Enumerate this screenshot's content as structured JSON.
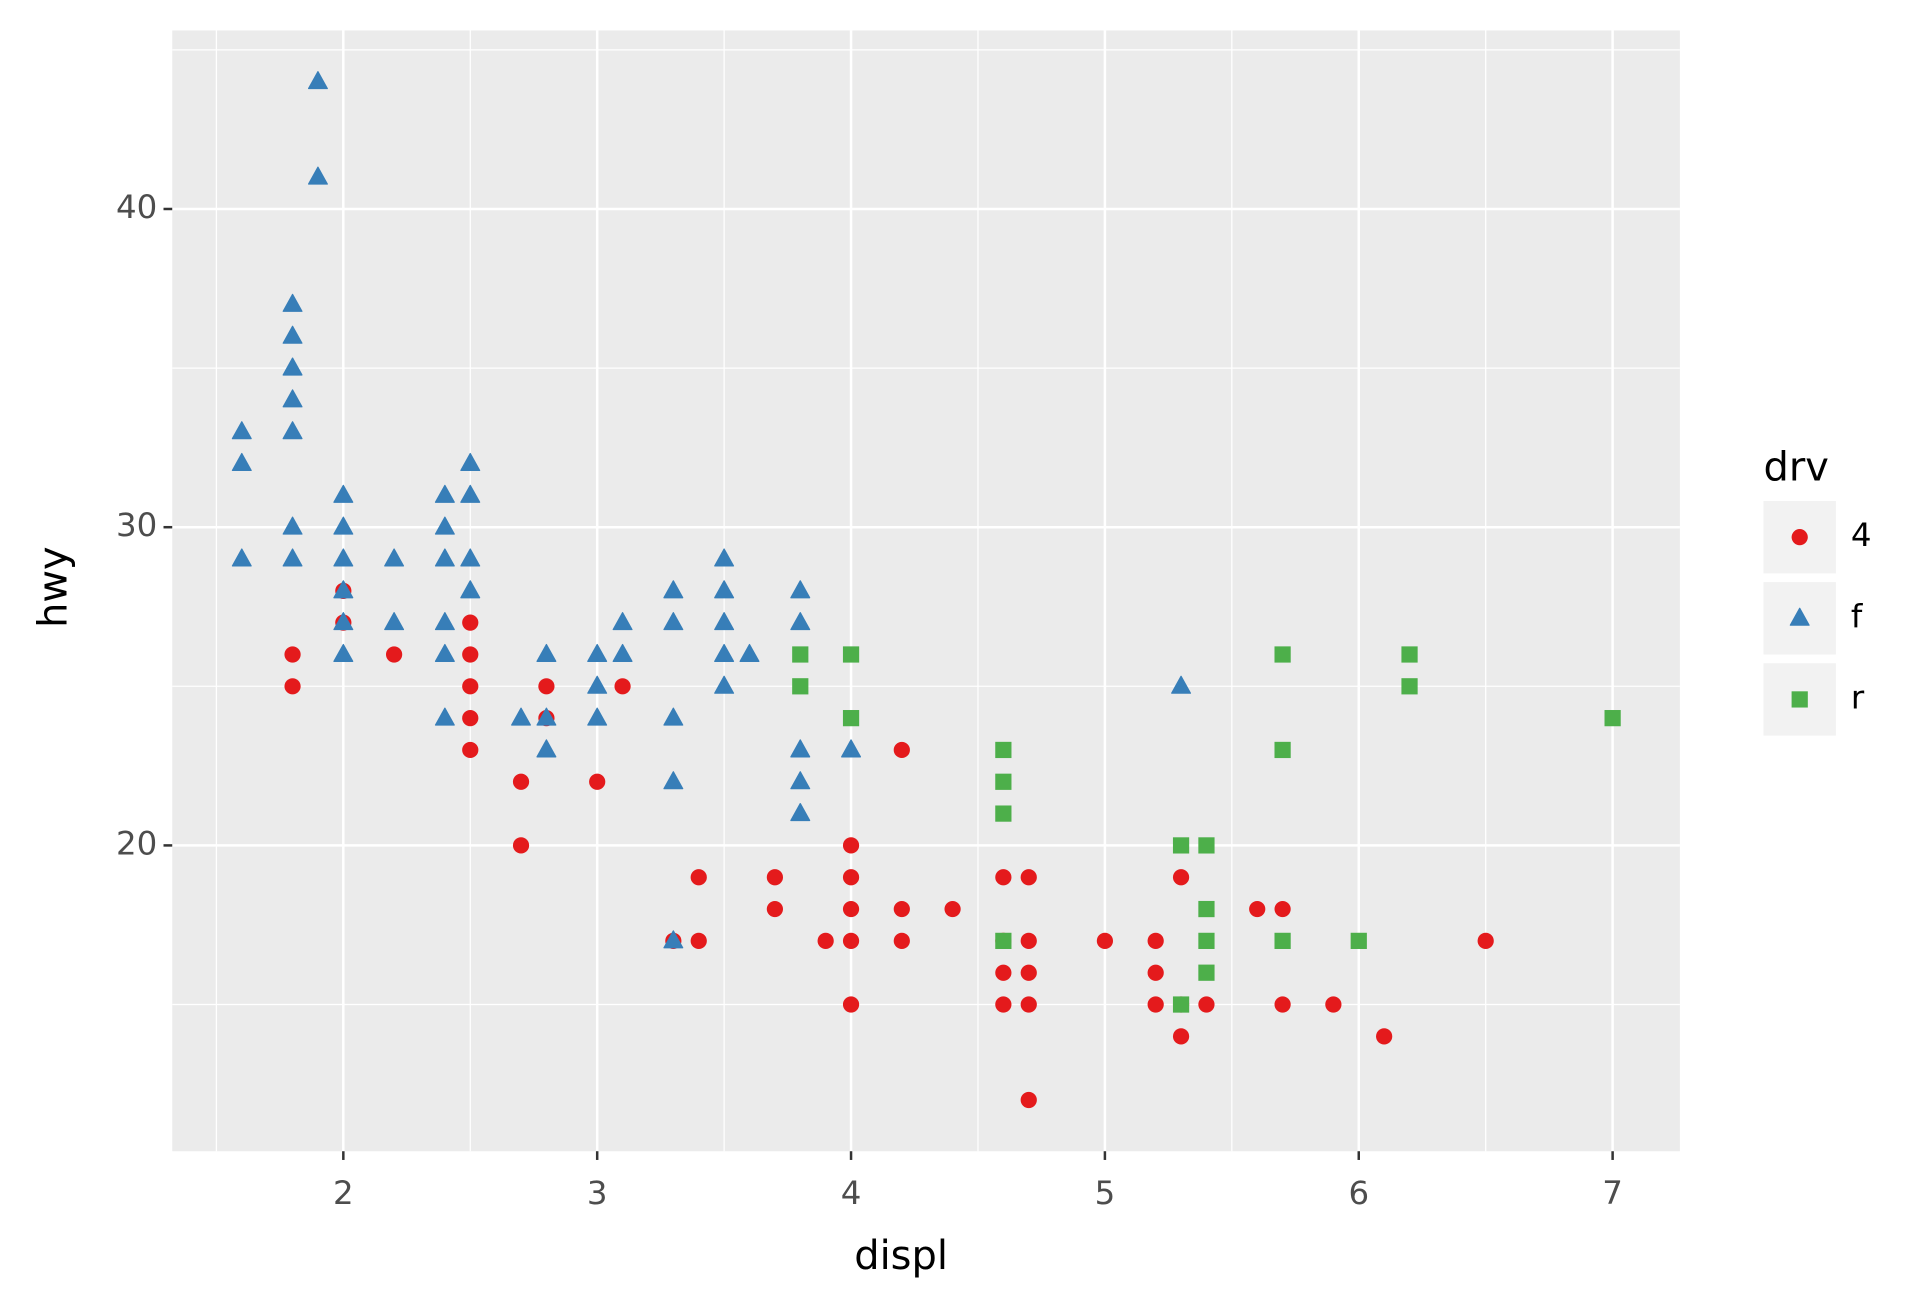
{
  "chart_data": {
    "type": "scatter",
    "x_label": "displ",
    "y_label": "hwy",
    "legend_title": "drv",
    "xlim": [
      1.326,
      7.265
    ],
    "ylim": [
      10.39,
      45.61
    ],
    "xticks": [
      2,
      3,
      4,
      5,
      6,
      7
    ],
    "yticks": [
      20,
      30,
      40
    ],
    "x_minor_ticks": [
      1.5,
      2.5,
      3.5,
      4.5,
      5.5,
      6.5
    ],
    "y_minor_ticks": [
      15,
      25,
      35,
      45
    ],
    "grid": true,
    "legend": "right",
    "series": [
      {
        "name": "4",
        "color": "#e41a1c",
        "marker": "circle",
        "x": [
          1.8,
          1.8,
          2,
          2,
          2.2,
          2.5,
          2.5,
          2.5,
          2.5,
          2.5,
          2.7,
          2.7,
          2.8,
          2.8,
          3,
          3.1,
          3.3,
          3.4,
          3.4,
          3.7,
          3.7,
          3.9,
          4,
          4,
          4,
          4,
          4,
          4.2,
          4.2,
          4.2,
          4.4,
          4.6,
          4.6,
          4.6,
          4.6,
          4.7,
          4.7,
          4.7,
          4.7,
          4.7,
          5,
          5.2,
          5.2,
          5.2,
          5.3,
          5.3,
          5.3,
          5.4,
          5.6,
          5.7,
          5.7,
          5.9,
          6.1,
          6.5
        ],
        "values": [
          26,
          25,
          28,
          27,
          26,
          27,
          26,
          25,
          24,
          23,
          22,
          20,
          25,
          24,
          22,
          25,
          17,
          19,
          17,
          19,
          18,
          17,
          20,
          19,
          18,
          17,
          15,
          23,
          18,
          17,
          18,
          19,
          17,
          16,
          15,
          19,
          17,
          16,
          15,
          12,
          17,
          17,
          16,
          15,
          19,
          15,
          14,
          15,
          18,
          18,
          15,
          15,
          14,
          17
        ]
      },
      {
        "name": "f",
        "color": "#377eb8",
        "marker": "triangle",
        "x": [
          1.6,
          1.6,
          1.6,
          1.8,
          1.8,
          1.8,
          1.8,
          1.8,
          1.8,
          1.8,
          1.9,
          1.9,
          2,
          2,
          2,
          2,
          2,
          2,
          2.2,
          2.2,
          2.4,
          2.4,
          2.4,
          2.4,
          2.4,
          2.4,
          2.5,
          2.5,
          2.5,
          2.5,
          2.7,
          2.8,
          2.8,
          2.8,
          3,
          3,
          3,
          3.1,
          3.1,
          3.3,
          3.3,
          3.3,
          3.3,
          3.3,
          3.5,
          3.5,
          3.5,
          3.5,
          3.5,
          3.6,
          3.8,
          3.8,
          3.8,
          3.8,
          3.8,
          4,
          5.3
        ],
        "values": [
          33,
          32,
          29,
          37,
          36,
          35,
          34,
          33,
          30,
          29,
          44,
          41,
          31,
          30,
          29,
          28,
          27,
          26,
          29,
          27,
          31,
          30,
          29,
          27,
          26,
          24,
          32,
          31,
          29,
          28,
          24,
          26,
          24,
          23,
          26,
          25,
          24,
          27,
          26,
          28,
          27,
          24,
          22,
          17,
          29,
          28,
          27,
          26,
          25,
          26,
          28,
          27,
          23,
          22,
          21,
          23,
          25
        ]
      },
      {
        "name": "r",
        "color": "#4daf4a",
        "marker": "square",
        "x": [
          3.8,
          3.8,
          4,
          4,
          4.6,
          4.6,
          4.6,
          4.6,
          5.3,
          5.3,
          5.4,
          5.4,
          5.4,
          5.4,
          5.7,
          5.7,
          5.7,
          6,
          6.2,
          6.2,
          7
        ],
        "values": [
          26,
          25,
          26,
          24,
          23,
          22,
          21,
          17,
          20,
          15,
          20,
          18,
          17,
          16,
          26,
          23,
          17,
          17,
          26,
          25,
          24
        ]
      }
    ]
  }
}
